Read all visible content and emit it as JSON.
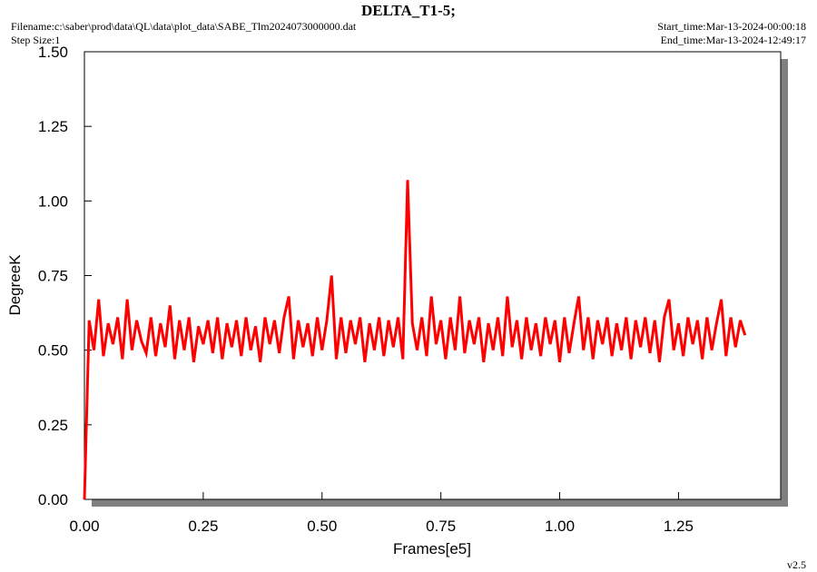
{
  "chart_data": {
    "type": "line",
    "title": "DELTA_T1-5;",
    "filename": "Filename:c:\\saber\\prod\\data\\QL\\data\\plot_data\\SABE_Tlm2024073000000.dat",
    "step_size": "Step Size:1",
    "start_time": "Start_time:Mar-13-2024-00:00:18",
    "end_time": "End_time:Mar-13-2024-12:49:17",
    "version": "v2.5",
    "xlabel": "Frames[e5]",
    "ylabel": "DegreeK",
    "xlim": [
      0,
      1.465
    ],
    "ylim": [
      0,
      1.5
    ],
    "xticks": [
      {
        "value": 0,
        "label": "0.00"
      },
      {
        "value": 0.25,
        "label": "0.25"
      },
      {
        "value": 0.5,
        "label": "0.50"
      },
      {
        "value": 0.75,
        "label": "0.75"
      },
      {
        "value": 1,
        "label": "1.00"
      },
      {
        "value": 1.25,
        "label": "1.25"
      }
    ],
    "yticks": [
      {
        "value": 0,
        "label": "0.00"
      },
      {
        "value": 0.25,
        "label": "0.25"
      },
      {
        "value": 0.5,
        "label": "0.50"
      },
      {
        "value": 0.75,
        "label": "0.75"
      },
      {
        "value": 1,
        "label": "1.00"
      },
      {
        "value": 1.25,
        "label": "1.25"
      },
      {
        "value": 1.5,
        "label": "1.50"
      }
    ],
    "x": [
      0,
      0.01,
      0.02,
      0.03,
      0.04,
      0.05,
      0.06,
      0.07,
      0.08,
      0.09,
      0.1,
      0.11,
      0.12,
      0.13,
      0.14,
      0.15,
      0.16,
      0.17,
      0.18,
      0.19,
      0.2,
      0.21,
      0.22,
      0.23,
      0.24,
      0.25,
      0.26,
      0.27,
      0.28,
      0.29,
      0.3,
      0.31,
      0.32,
      0.33,
      0.34,
      0.35,
      0.36,
      0.37,
      0.38,
      0.39,
      0.4,
      0.41,
      0.42,
      0.43,
      0.44,
      0.45,
      0.46,
      0.47,
      0.48,
      0.49,
      0.5,
      0.51,
      0.52,
      0.53,
      0.54,
      0.55,
      0.56,
      0.57,
      0.58,
      0.59,
      0.6,
      0.61,
      0.62,
      0.63,
      0.64,
      0.65,
      0.66,
      0.67,
      0.68,
      0.69,
      0.7,
      0.71,
      0.72,
      0.73,
      0.74,
      0.75,
      0.76,
      0.77,
      0.78,
      0.79,
      0.8,
      0.81,
      0.82,
      0.83,
      0.84,
      0.85,
      0.86,
      0.87,
      0.88,
      0.89,
      0.9,
      0.91,
      0.92,
      0.93,
      0.94,
      0.95,
      0.96,
      0.97,
      0.98,
      0.99,
      1,
      1.01,
      1.02,
      1.03,
      1.04,
      1.05,
      1.06,
      1.07,
      1.08,
      1.09,
      1.1,
      1.11,
      1.12,
      1.13,
      1.14,
      1.15,
      1.16,
      1.17,
      1.18,
      1.19,
      1.2,
      1.21,
      1.22,
      1.23,
      1.24,
      1.25,
      1.26,
      1.27,
      1.28,
      1.29,
      1.3,
      1.31,
      1.32,
      1.33,
      1.34,
      1.35,
      1.36,
      1.37,
      1.38,
      1.39
    ],
    "series": [
      {
        "color": "#ff0000",
        "values": [
          0,
          0.6,
          0.5,
          0.67,
          0.48,
          0.59,
          0.52,
          0.61,
          0.47,
          0.67,
          0.5,
          0.6,
          0.53,
          0.49,
          0.61,
          0.48,
          0.59,
          0.51,
          0.65,
          0.47,
          0.6,
          0.5,
          0.61,
          0.46,
          0.58,
          0.52,
          0.6,
          0.49,
          0.61,
          0.47,
          0.59,
          0.51,
          0.6,
          0.48,
          0.61,
          0.5,
          0.58,
          0.46,
          0.61,
          0.52,
          0.6,
          0.49,
          0.61,
          0.68,
          0.47,
          0.6,
          0.51,
          0.59,
          0.48,
          0.61,
          0.5,
          0.6,
          0.75,
          0.47,
          0.61,
          0.49,
          0.6,
          0.52,
          0.61,
          0.46,
          0.59,
          0.5,
          0.61,
          0.48,
          0.6,
          0.51,
          0.61,
          0.47,
          1.07,
          0.59,
          0.5,
          0.61,
          0.48,
          0.68,
          0.52,
          0.6,
          0.47,
          0.61,
          0.5,
          0.68,
          0.49,
          0.6,
          0.52,
          0.61,
          0.46,
          0.59,
          0.5,
          0.61,
          0.48,
          0.68,
          0.51,
          0.6,
          0.47,
          0.61,
          0.5,
          0.59,
          0.48,
          0.61,
          0.52,
          0.6,
          0.46,
          0.61,
          0.49,
          0.59,
          0.68,
          0.5,
          0.61,
          0.47,
          0.6,
          0.52,
          0.61,
          0.48,
          0.59,
          0.5,
          0.61,
          0.47,
          0.6,
          0.51,
          0.61,
          0.49,
          0.6,
          0.46,
          0.61,
          0.67,
          0.5,
          0.59,
          0.48,
          0.61,
          0.52,
          0.6,
          0.47,
          0.61,
          0.5,
          0.59,
          0.67,
          0.48,
          0.61,
          0.51,
          0.6,
          0.55
        ]
      }
    ]
  }
}
